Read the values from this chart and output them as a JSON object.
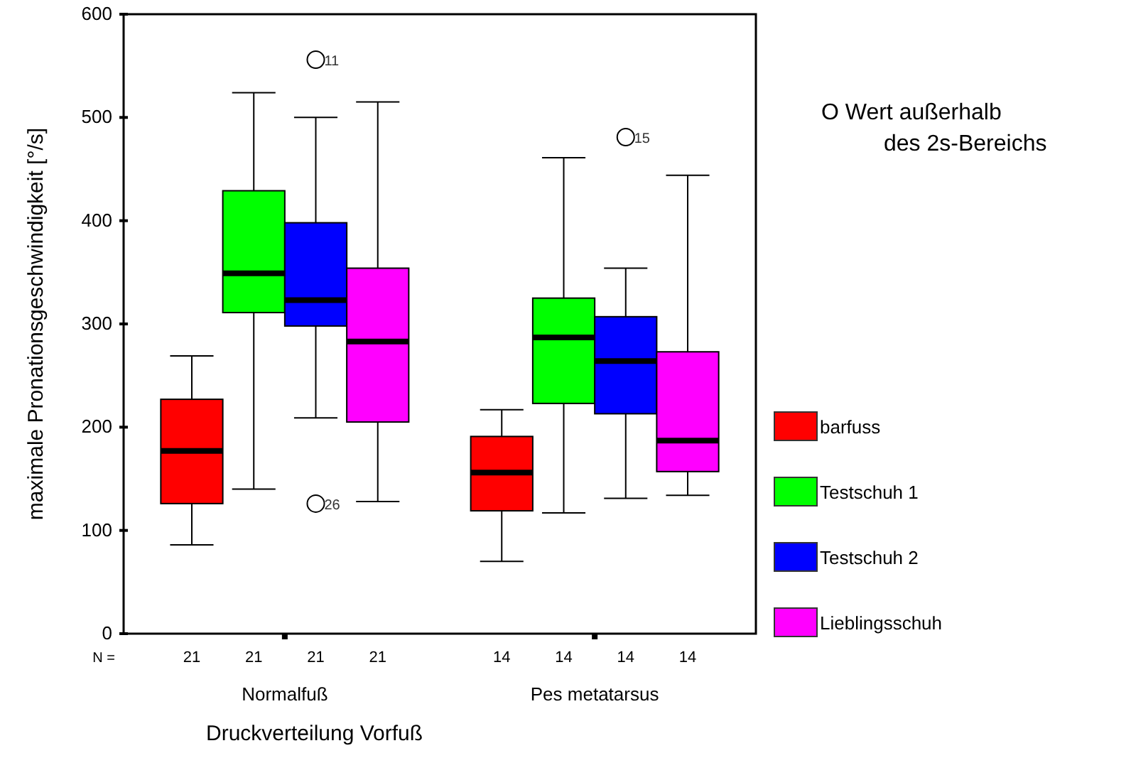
{
  "chart_data": {
    "type": "box",
    "xlabel": "Druckverteilung Vorfuß",
    "ylabel": "maximale Pronationsgeschwindigkeit [°/s]",
    "categories": [
      "Normalfuß",
      "Pes metatarsus"
    ],
    "ylim": [
      0,
      600
    ],
    "yticks": [
      0,
      100,
      200,
      300,
      400,
      500,
      600
    ],
    "grid": false,
    "legend": "right",
    "series": [
      {
        "name": "barfuss",
        "color": "#ff0000",
        "boxes": [
          {
            "low": 86,
            "q1": 126,
            "median": 177,
            "q3": 227,
            "high": 269
          },
          {
            "low": 70,
            "q1": 119,
            "median": 156,
            "q3": 191,
            "high": 217
          }
        ]
      },
      {
        "name": "Testschuh 1",
        "color": "#00ff00",
        "boxes": [
          {
            "low": 140,
            "q1": 311,
            "median": 349,
            "q3": 429,
            "high": 524
          },
          {
            "low": 117,
            "q1": 223,
            "median": 287,
            "q3": 325,
            "high": 461
          }
        ]
      },
      {
        "name": "Testschuh 2",
        "color": "#0000ff",
        "boxes": [
          {
            "low": 209,
            "q1": 298,
            "median": 323,
            "q3": 398,
            "high": 500,
            "outliers": [
              556,
              126
            ]
          },
          {
            "low": 131,
            "q1": 213,
            "median": 264,
            "q3": 307,
            "high": 354,
            "outliers": [
              481
            ]
          }
        ]
      },
      {
        "name": "Lieblingsschuh",
        "color": "#ff00ff",
        "boxes": [
          {
            "low": 128,
            "q1": 205,
            "median": 283,
            "q3": 354,
            "high": 515
          },
          {
            "low": 134,
            "q1": 157,
            "median": 187,
            "q3": 273,
            "high": 444
          }
        ]
      }
    ],
    "annotations": [
      "O  Wert außerhalb des 2s-Bereichs",
      "N =",
      "21",
      "21",
      "21",
      "21",
      "14",
      "14",
      "14",
      "14",
      "11",
      "26",
      "15"
    ]
  }
}
